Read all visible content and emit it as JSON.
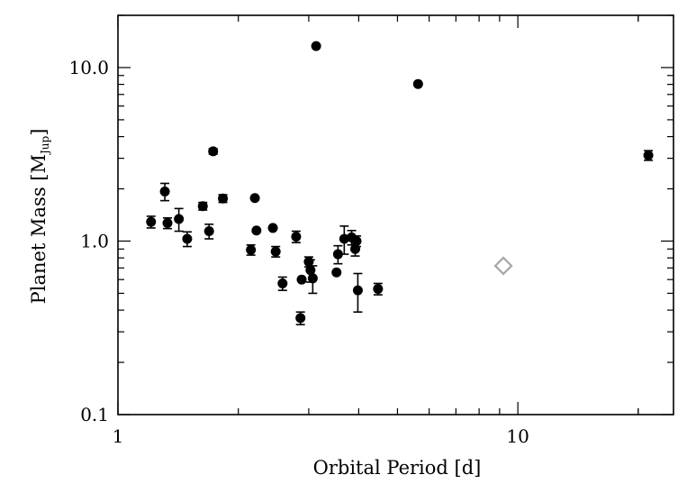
{
  "chart_data": {
    "type": "scatter",
    "xlabel": "Orbital Period [d]",
    "ylabel": {
      "main": "Planet Mass [M",
      "sub": "Jup",
      "close": "]"
    },
    "x_scale": "log",
    "y_scale": "log",
    "xlim": [
      1,
      24.5
    ],
    "ylim": [
      0.1,
      20
    ],
    "x_ticks": [
      {
        "value": 1,
        "label": "1"
      },
      {
        "value": 10,
        "label": "10"
      }
    ],
    "y_ticks": [
      {
        "value": 0.1,
        "label": "0.1"
      },
      {
        "value": 1,
        "label": "1.0"
      },
      {
        "value": 10,
        "label": "10.0"
      }
    ],
    "grid": false,
    "points": [
      {
        "x": 1.21,
        "y": 1.29,
        "err": 0.1
      },
      {
        "x": 1.31,
        "y": 1.93,
        "err": 0.22
      },
      {
        "x": 1.33,
        "y": 1.27,
        "err": 0.09
      },
      {
        "x": 1.42,
        "y": 1.34,
        "err": 0.2
      },
      {
        "x": 1.49,
        "y": 1.03,
        "err": 0.1
      },
      {
        "x": 1.63,
        "y": 1.59,
        "err": 0.08
      },
      {
        "x": 1.69,
        "y": 1.14,
        "err": 0.11
      },
      {
        "x": 1.73,
        "y": 3.29,
        "err": 0.12
      },
      {
        "x": 1.83,
        "y": 1.76,
        "err": 0.09
      },
      {
        "x": 2.15,
        "y": 0.89,
        "err": 0.06
      },
      {
        "x": 2.2,
        "y": 1.77
      },
      {
        "x": 2.22,
        "y": 1.15
      },
      {
        "x": 2.44,
        "y": 1.19
      },
      {
        "x": 2.48,
        "y": 0.87,
        "err": 0.06
      },
      {
        "x": 2.58,
        "y": 0.57,
        "err": 0.05
      },
      {
        "x": 2.79,
        "y": 1.06,
        "err": 0.08
      },
      {
        "x": 2.86,
        "y": 0.36,
        "err": 0.03
      },
      {
        "x": 2.88,
        "y": 0.6
      },
      {
        "x": 3.0,
        "y": 0.76,
        "err": 0.05
      },
      {
        "x": 3.03,
        "y": 0.68,
        "err": 0.1
      },
      {
        "x": 3.07,
        "y": 0.61,
        "err": 0.11
      },
      {
        "x": 3.13,
        "y": 13.3
      },
      {
        "x": 3.52,
        "y": 0.66
      },
      {
        "x": 3.55,
        "y": 0.84,
        "err": 0.1
      },
      {
        "x": 3.68,
        "y": 1.03,
        "err": 0.19
      },
      {
        "x": 3.84,
        "y": 1.05,
        "err": 0.1
      },
      {
        "x": 3.92,
        "y": 0.9,
        "err": 0.08
      },
      {
        "x": 3.95,
        "y": 1.0,
        "err": 0.07
      },
      {
        "x": 3.98,
        "y": 0.52,
        "err": 0.13
      },
      {
        "x": 4.47,
        "y": 0.53,
        "err": 0.04
      },
      {
        "x": 5.63,
        "y": 8.04
      },
      {
        "x": 21.2,
        "y": 3.12,
        "err": 0.2
      },
      {
        "x": 9.2,
        "y": 0.72,
        "marker": "open-diamond",
        "color": "#a6a6a6"
      }
    ]
  }
}
